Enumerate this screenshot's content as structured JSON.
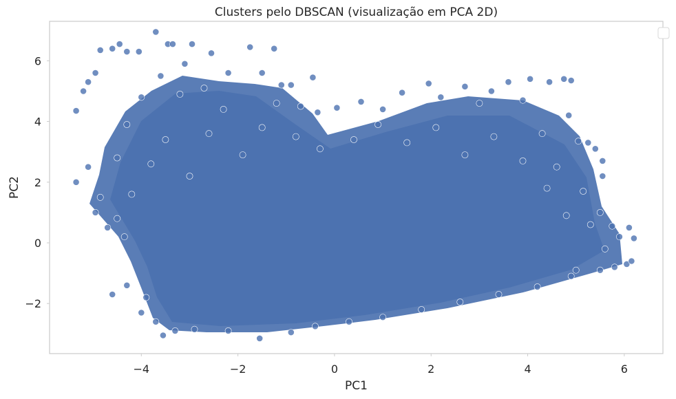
{
  "chart_data": {
    "type": "scatter",
    "title": "Clusters pelo DBSCAN (visualização em PCA 2D)",
    "xlabel": "PC1",
    "ylabel": "PC2",
    "xlim": [
      -5.9,
      6.8
    ],
    "ylim": [
      -3.65,
      7.3
    ],
    "xticks": [
      -4,
      -2,
      0,
      2,
      4,
      6
    ],
    "yticks": [
      -2,
      0,
      2,
      4,
      6
    ],
    "xtick_labels": [
      "−4",
      "−2",
      "0",
      "2",
      "4",
      "6"
    ],
    "ytick_labels": [
      "−2",
      "0",
      "2",
      "4",
      "6"
    ],
    "grid": false,
    "legend": "top-right (empty)",
    "series": [
      {
        "color": "#4c72b0",
        "points": [
          [
            -5.35,
            4.35
          ],
          [
            -5.2,
            5.0
          ],
          [
            -5.1,
            5.3
          ],
          [
            -4.95,
            5.6
          ],
          [
            -4.85,
            6.35
          ],
          [
            -4.6,
            6.4
          ],
          [
            -4.45,
            6.55
          ],
          [
            -4.3,
            6.3
          ],
          [
            -4.05,
            6.3
          ],
          [
            -3.7,
            6.95
          ],
          [
            -3.45,
            6.55
          ],
          [
            -3.35,
            6.55
          ],
          [
            -2.95,
            6.55
          ],
          [
            -2.55,
            6.25
          ],
          [
            -1.75,
            6.45
          ],
          [
            -1.25,
            6.4
          ],
          [
            -3.1,
            5.9
          ],
          [
            -2.2,
            5.6
          ],
          [
            -1.5,
            5.6
          ],
          [
            -0.9,
            5.2
          ],
          [
            -0.45,
            5.45
          ],
          [
            -5.35,
            2.0
          ],
          [
            -5.1,
            2.5
          ],
          [
            -4.85,
            1.5
          ],
          [
            -4.95,
            1.0
          ],
          [
            -4.7,
            0.5
          ],
          [
            -4.5,
            0.8
          ],
          [
            -4.35,
            0.2
          ],
          [
            -4.6,
            -1.7
          ],
          [
            -4.3,
            -1.4
          ],
          [
            -4.0,
            -2.3
          ],
          [
            -3.9,
            -1.8
          ],
          [
            -3.7,
            -2.6
          ],
          [
            -3.55,
            -3.05
          ],
          [
            -3.3,
            -2.9
          ],
          [
            -2.9,
            -2.85
          ],
          [
            -2.2,
            -2.9
          ],
          [
            -1.55,
            -3.15
          ],
          [
            -0.9,
            -2.95
          ],
          [
            -0.4,
            -2.75
          ],
          [
            0.3,
            -2.6
          ],
          [
            1.0,
            -2.45
          ],
          [
            1.8,
            -2.2
          ],
          [
            2.6,
            -1.95
          ],
          [
            3.4,
            -1.7
          ],
          [
            4.2,
            -1.45
          ],
          [
            4.9,
            -1.1
          ],
          [
            5.5,
            -0.9
          ],
          [
            5.8,
            -0.8
          ],
          [
            6.05,
            -0.7
          ],
          [
            6.15,
            -0.6
          ],
          [
            6.2,
            0.15
          ],
          [
            6.1,
            0.5
          ],
          [
            5.9,
            0.2
          ],
          [
            5.75,
            0.55
          ],
          [
            5.5,
            1.0
          ],
          [
            5.55,
            2.7
          ],
          [
            5.4,
            3.1
          ],
          [
            5.55,
            2.2
          ],
          [
            5.25,
            3.3
          ],
          [
            5.05,
            3.35
          ],
          [
            4.85,
            4.2
          ],
          [
            4.75,
            5.4
          ],
          [
            4.9,
            5.35
          ],
          [
            4.45,
            5.3
          ],
          [
            4.05,
            5.4
          ],
          [
            3.6,
            5.3
          ],
          [
            3.25,
            5.0
          ],
          [
            2.7,
            5.15
          ],
          [
            1.95,
            5.25
          ],
          [
            1.4,
            4.95
          ],
          [
            0.55,
            4.65
          ],
          [
            0.05,
            4.45
          ],
          [
            -0.35,
            4.3
          ],
          [
            -0.7,
            4.5
          ],
          [
            -1.1,
            5.2
          ],
          [
            5.15,
            1.7
          ],
          [
            5.3,
            0.6
          ],
          [
            5.6,
            -0.2
          ],
          [
            5.0,
            -0.9
          ],
          [
            4.6,
            2.5
          ],
          [
            4.3,
            3.6
          ],
          [
            3.9,
            4.7
          ],
          [
            3.0,
            4.6
          ],
          [
            2.2,
            4.8
          ],
          [
            1.0,
            4.4
          ],
          [
            -4.5,
            2.8
          ],
          [
            -4.3,
            3.9
          ],
          [
            -4.0,
            4.8
          ],
          [
            -3.6,
            5.5
          ],
          [
            -3.2,
            4.9
          ],
          [
            -2.7,
            5.1
          ],
          [
            -4.2,
            1.6
          ],
          [
            -3.8,
            2.6
          ],
          [
            -3.5,
            3.4
          ],
          [
            -3.0,
            2.2
          ],
          [
            -2.6,
            3.6
          ],
          [
            -2.3,
            4.4
          ],
          [
            -1.9,
            2.9
          ],
          [
            -1.5,
            3.8
          ],
          [
            -1.2,
            4.6
          ],
          [
            -0.8,
            3.5
          ],
          [
            -0.3,
            3.1
          ],
          [
            0.4,
            3.4
          ],
          [
            0.9,
            3.9
          ],
          [
            1.5,
            3.3
          ],
          [
            2.1,
            3.8
          ],
          [
            2.7,
            2.9
          ],
          [
            3.3,
            3.5
          ],
          [
            3.9,
            2.7
          ],
          [
            4.4,
            1.8
          ],
          [
            4.8,
            0.9
          ]
        ]
      }
    ]
  }
}
